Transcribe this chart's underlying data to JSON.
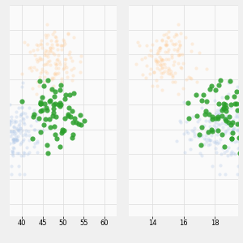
{
  "background_color": "#f0f0f0",
  "plot_bg_color": "#fafafa",
  "grid_color": "#dddddd",
  "selected_color": "#2ca02c",
  "adelie_color": "#aec7e8",
  "gentoo_color": "#ffcc99",
  "selected_alpha": 0.85,
  "unselected_alpha": 0.3,
  "marker_size_selected": 20,
  "marker_size_unselected": 9,
  "left_xlim": [
    37.0,
    63.0
  ],
  "right_xlim": [
    12.5,
    19.5
  ],
  "ylim": [
    155,
    240
  ],
  "left_xticks": [
    40,
    45,
    50,
    55,
    60
  ],
  "right_xticks": [
    14,
    16,
    18
  ],
  "seed": 7
}
